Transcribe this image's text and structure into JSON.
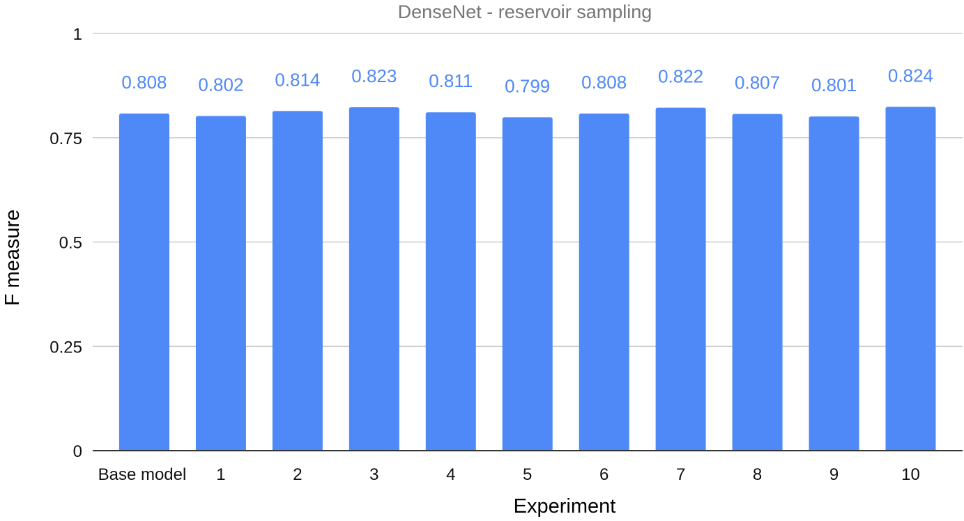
{
  "chart_data": {
    "type": "bar",
    "title": "DenseNet - reservoir sampling",
    "xlabel": "Experiment",
    "ylabel": "F measure",
    "categories": [
      "Base model",
      "1",
      "2",
      "3",
      "4",
      "5",
      "6",
      "7",
      "8",
      "9",
      "10"
    ],
    "values": [
      0.808,
      0.802,
      0.814,
      0.823,
      0.811,
      0.799,
      0.808,
      0.822,
      0.807,
      0.801,
      0.824
    ],
    "data_labels": [
      "0.808",
      "0.802",
      "0.814",
      "0.823",
      "0.811",
      "0.799",
      "0.808",
      "0.822",
      "0.807",
      "0.801",
      "0.824"
    ],
    "ylim": [
      0,
      1
    ],
    "yticks": [
      0,
      0.25,
      0.5,
      0.75,
      1
    ],
    "ytick_labels": [
      "0",
      "0.25",
      "0.5",
      "0.75",
      "1"
    ],
    "grid": true,
    "legend": "none"
  },
  "colors": {
    "bar": "#4f88f7",
    "data_label": "#4f88f7",
    "gridline": "#cccccc",
    "baseline": "#333333",
    "title": "#757575"
  }
}
